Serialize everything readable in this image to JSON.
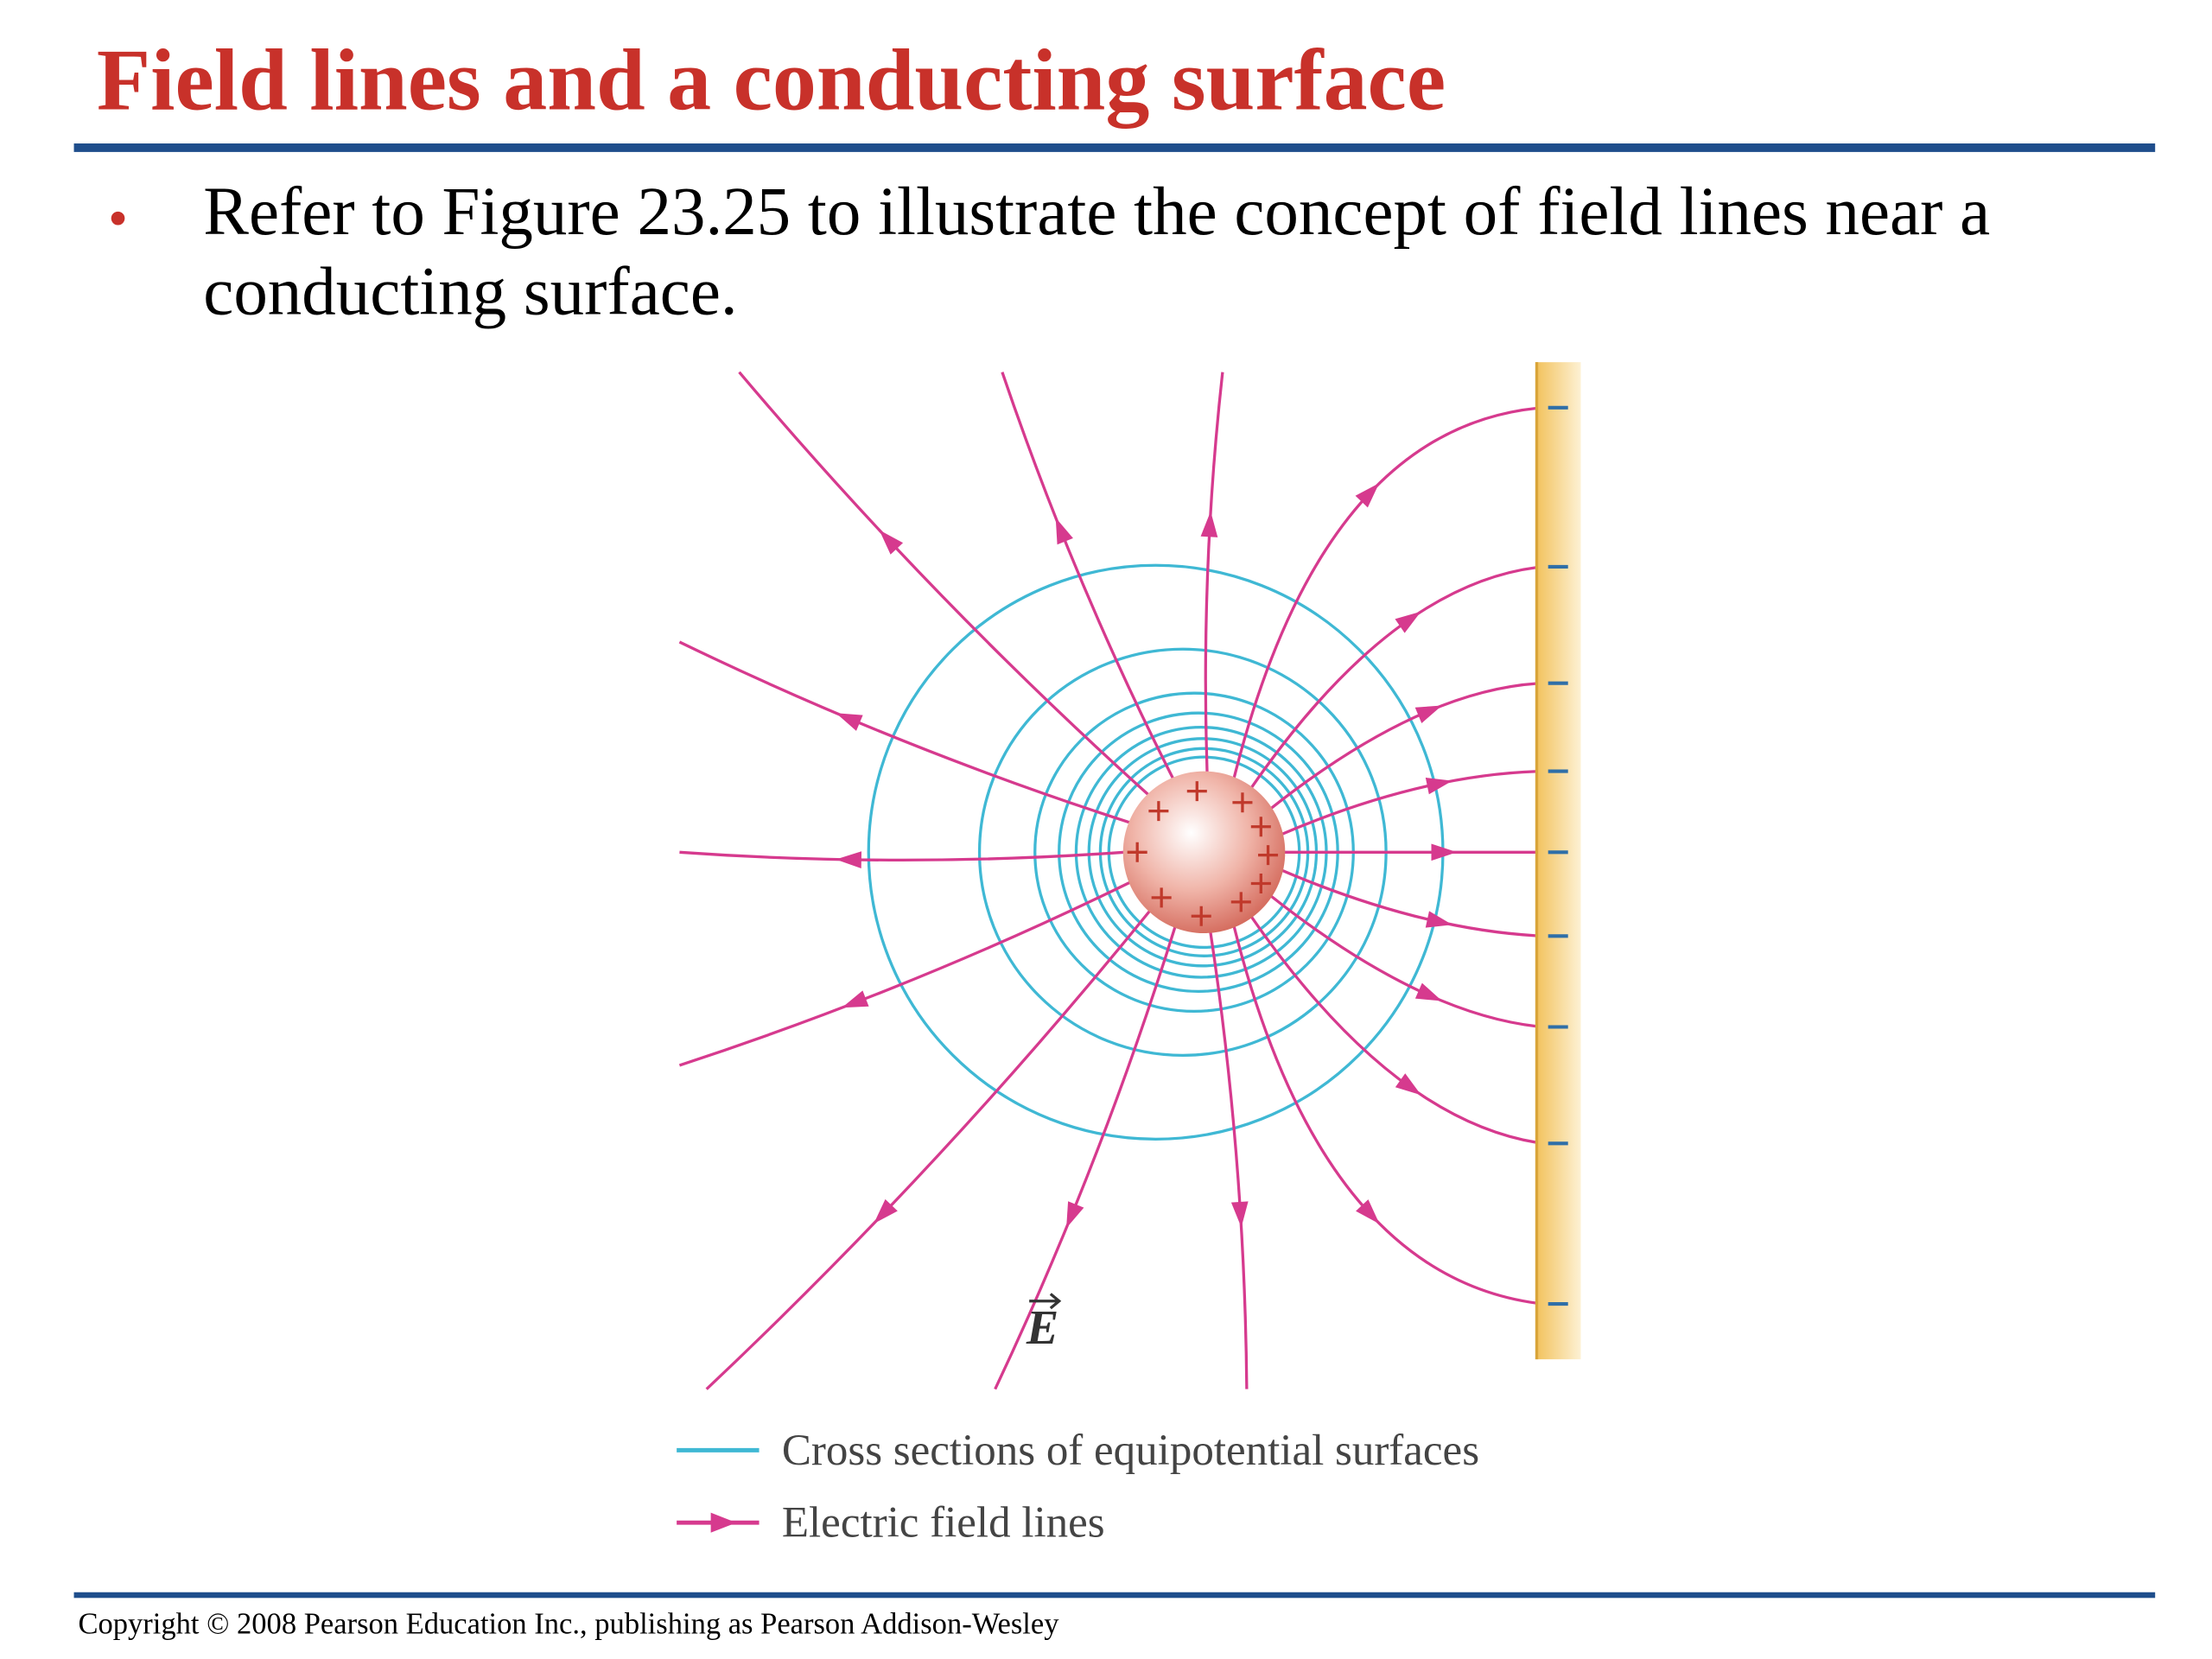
{
  "title": "Field lines and a conducting surface",
  "bullets": [
    "Refer to Figure 23.25 to illustrate the concept of field lines near a conducting surface."
  ],
  "figure": {
    "vector_label": "E",
    "legend": [
      "Cross sections of equipotential surfaces",
      "Electric field lines"
    ]
  },
  "footer": "Copyright © 2008 Pearson Education Inc., publishing as Pearson Addison-Wesley"
}
